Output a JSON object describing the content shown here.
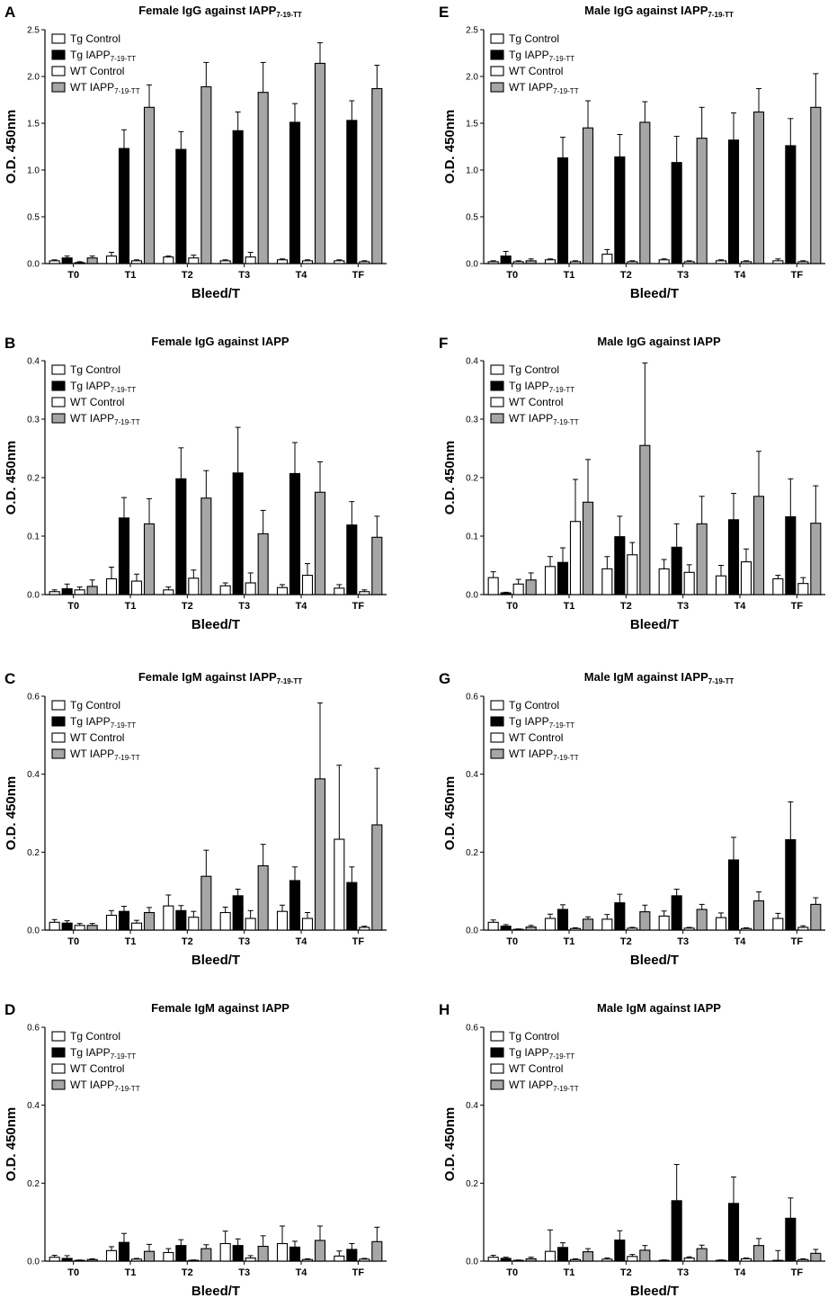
{
  "figure": {
    "series": [
      {
        "name": "Tg Control",
        "base": "Tg Control",
        "sub": "",
        "color": "#ffffff"
      },
      {
        "name": "Tg IAPP7-19-TT",
        "base": "Tg IAPP",
        "sub": "7-19-TT",
        "color": "#000000"
      },
      {
        "name": "WT Control",
        "base": "WT Control",
        "sub": "",
        "color": "#ffffff"
      },
      {
        "name": "WT IAPP7-19-TT",
        "base": "WT IAPP",
        "sub": "7-19-TT",
        "color": "#a6a6a6"
      }
    ],
    "categories": [
      "T0",
      "T1",
      "T2",
      "T3",
      "T4",
      "TF"
    ],
    "xlabel": "Bleed/T",
    "ylabel": "O.D. 450nm"
  },
  "chart_data": [
    {
      "type": "bar",
      "letter": "A",
      "title": "Female IgG against IAPP",
      "title_sub": "7-19-TT",
      "ylim": [
        0,
        2.5
      ],
      "yticks": [
        "0.0",
        "0.5",
        "1.0",
        "1.5",
        "2.0",
        "2.5"
      ],
      "values": [
        [
          0.03,
          0.06,
          0.01,
          0.06
        ],
        [
          0.08,
          1.23,
          0.03,
          1.67
        ],
        [
          0.07,
          1.22,
          0.06,
          1.89
        ],
        [
          0.03,
          1.42,
          0.07,
          1.83
        ],
        [
          0.04,
          1.51,
          0.03,
          2.14
        ],
        [
          0.03,
          1.53,
          0.02,
          1.87
        ]
      ],
      "errors": [
        [
          0.01,
          0.02,
          0.01,
          0.02
        ],
        [
          0.04,
          0.2,
          0.01,
          0.24
        ],
        [
          0.01,
          0.19,
          0.03,
          0.26
        ],
        [
          0.01,
          0.2,
          0.05,
          0.32
        ],
        [
          0.01,
          0.2,
          0.01,
          0.22
        ],
        [
          0.01,
          0.21,
          0.01,
          0.25
        ]
      ]
    },
    {
      "type": "bar",
      "letter": "E",
      "title": "Male IgG against IAPP",
      "title_sub": "7-19-TT",
      "ylim": [
        0,
        2.5
      ],
      "yticks": [
        "0.0",
        "0.5",
        "1.0",
        "1.5",
        "2.0",
        "2.5"
      ],
      "values": [
        [
          0.02,
          0.08,
          0.02,
          0.03
        ],
        [
          0.04,
          1.13,
          0.02,
          1.45
        ],
        [
          0.1,
          1.14,
          0.02,
          1.51
        ],
        [
          0.04,
          1.08,
          0.02,
          1.34
        ],
        [
          0.03,
          1.32,
          0.02,
          1.62
        ],
        [
          0.03,
          1.26,
          0.02,
          1.67
        ]
      ],
      "errors": [
        [
          0.01,
          0.05,
          0.01,
          0.02
        ],
        [
          0.01,
          0.22,
          0.01,
          0.29
        ],
        [
          0.05,
          0.24,
          0.01,
          0.22
        ],
        [
          0.01,
          0.28,
          0.01,
          0.33
        ],
        [
          0.01,
          0.29,
          0.01,
          0.25
        ],
        [
          0.02,
          0.29,
          0.01,
          0.36
        ]
      ]
    },
    {
      "type": "bar",
      "letter": "B",
      "title": "Female IgG against IAPP",
      "title_sub": "",
      "ylim": [
        0,
        0.4
      ],
      "yticks": [
        "0.0",
        "0.1",
        "0.2",
        "0.3",
        "0.4"
      ],
      "values": [
        [
          0.005,
          0.01,
          0.008,
          0.014
        ],
        [
          0.027,
          0.131,
          0.023,
          0.121
        ],
        [
          0.008,
          0.198,
          0.028,
          0.165
        ],
        [
          0.015,
          0.208,
          0.02,
          0.104
        ],
        [
          0.012,
          0.207,
          0.033,
          0.175
        ],
        [
          0.011,
          0.119,
          0.005,
          0.098
        ]
      ],
      "errors": [
        [
          0.003,
          0.008,
          0.005,
          0.011
        ],
        [
          0.02,
          0.035,
          0.012,
          0.043
        ],
        [
          0.005,
          0.053,
          0.014,
          0.047
        ],
        [
          0.005,
          0.078,
          0.017,
          0.04
        ],
        [
          0.005,
          0.053,
          0.02,
          0.052
        ],
        [
          0.006,
          0.04,
          0.003,
          0.036
        ]
      ]
    },
    {
      "type": "bar",
      "letter": "F",
      "title": "Male IgG against IAPP",
      "title_sub": "",
      "ylim": [
        0,
        0.4
      ],
      "yticks": [
        "0.0",
        "0.1",
        "0.2",
        "0.3",
        "0.4"
      ],
      "values": [
        [
          0.029,
          0.003,
          0.018,
          0.025
        ],
        [
          0.048,
          0.055,
          0.125,
          0.158
        ],
        [
          0.044,
          0.099,
          0.068,
          0.255
        ],
        [
          0.044,
          0.081,
          0.038,
          0.121
        ],
        [
          0.032,
          0.128,
          0.056,
          0.168
        ],
        [
          0.027,
          0.133,
          0.019,
          0.122
        ]
      ],
      "errors": [
        [
          0.01,
          0.001,
          0.008,
          0.012
        ],
        [
          0.017,
          0.025,
          0.072,
          0.073
        ],
        [
          0.021,
          0.035,
          0.021,
          0.141
        ],
        [
          0.016,
          0.04,
          0.013,
          0.047
        ],
        [
          0.018,
          0.045,
          0.022,
          0.077
        ],
        [
          0.006,
          0.065,
          0.01,
          0.064
        ]
      ]
    },
    {
      "type": "bar",
      "letter": "C",
      "title": "Female IgM against IAPP",
      "title_sub": "7-19-TT",
      "ylim": [
        0,
        0.6
      ],
      "yticks": [
        "0.0",
        "0.2",
        "0.4",
        "0.6"
      ],
      "values": [
        [
          0.02,
          0.018,
          0.012,
          0.012
        ],
        [
          0.038,
          0.048,
          0.018,
          0.045
        ],
        [
          0.062,
          0.05,
          0.033,
          0.138
        ],
        [
          0.045,
          0.088,
          0.03,
          0.165
        ],
        [
          0.048,
          0.127,
          0.03,
          0.388
        ],
        [
          0.233,
          0.122,
          0.007,
          0.27
        ]
      ],
      "errors": [
        [
          0.007,
          0.006,
          0.005,
          0.005
        ],
        [
          0.012,
          0.013,
          0.007,
          0.013
        ],
        [
          0.028,
          0.013,
          0.015,
          0.067
        ],
        [
          0.014,
          0.017,
          0.02,
          0.055
        ],
        [
          0.016,
          0.035,
          0.015,
          0.195
        ],
        [
          0.19,
          0.04,
          0.003,
          0.145
        ]
      ]
    },
    {
      "type": "bar",
      "letter": "G",
      "title": "Male IgM against IAPP",
      "title_sub": "7-19-TT",
      "ylim": [
        0,
        0.6
      ],
      "yticks": [
        "0.0",
        "0.2",
        "0.4",
        "0.6"
      ],
      "values": [
        [
          0.02,
          0.01,
          0.002,
          0.008
        ],
        [
          0.03,
          0.053,
          0.004,
          0.028
        ],
        [
          0.028,
          0.07,
          0.005,
          0.047
        ],
        [
          0.036,
          0.088,
          0.005,
          0.053
        ],
        [
          0.032,
          0.18,
          0.004,
          0.075
        ],
        [
          0.03,
          0.232,
          0.007,
          0.066
        ]
      ],
      "errors": [
        [
          0.006,
          0.004,
          0.001,
          0.004
        ],
        [
          0.011,
          0.012,
          0.002,
          0.006
        ],
        [
          0.012,
          0.022,
          0.002,
          0.017
        ],
        [
          0.013,
          0.017,
          0.002,
          0.013
        ],
        [
          0.012,
          0.058,
          0.002,
          0.023
        ],
        [
          0.013,
          0.097,
          0.004,
          0.017
        ]
      ]
    },
    {
      "type": "bar",
      "letter": "D",
      "title": "Female IgM against IAPP",
      "title_sub": "",
      "ylim": [
        0,
        0.6
      ],
      "yticks": [
        "0.0",
        "0.2",
        "0.4",
        "0.6"
      ],
      "values": [
        [
          0.01,
          0.007,
          0.002,
          0.004
        ],
        [
          0.027,
          0.048,
          0.005,
          0.025
        ],
        [
          0.022,
          0.04,
          0.002,
          0.032
        ],
        [
          0.045,
          0.04,
          0.008,
          0.038
        ],
        [
          0.045,
          0.036,
          0.004,
          0.053
        ],
        [
          0.013,
          0.03,
          0.005,
          0.05
        ]
      ],
      "errors": [
        [
          0.005,
          0.007,
          0.001,
          0.002
        ],
        [
          0.01,
          0.023,
          0.002,
          0.018
        ],
        [
          0.01,
          0.015,
          0.001,
          0.01
        ],
        [
          0.032,
          0.017,
          0.006,
          0.027
        ],
        [
          0.045,
          0.015,
          0.002,
          0.037
        ],
        [
          0.013,
          0.015,
          0.002,
          0.037
        ]
      ]
    },
    {
      "type": "bar",
      "letter": "H",
      "title": "Male IgM against IAPP",
      "title_sub": "",
      "ylim": [
        0,
        0.6
      ],
      "yticks": [
        "0.0",
        "0.2",
        "0.4",
        "0.6"
      ],
      "values": [
        [
          0.01,
          0.007,
          0.002,
          0.006
        ],
        [
          0.025,
          0.035,
          0.004,
          0.024
        ],
        [
          0.005,
          0.054,
          0.012,
          0.028
        ],
        [
          0.002,
          0.155,
          0.008,
          0.032
        ],
        [
          0.002,
          0.148,
          0.006,
          0.04
        ],
        [
          0.002,
          0.11,
          0.004,
          0.02
        ]
      ],
      "errors": [
        [
          0.005,
          0.003,
          0.001,
          0.004
        ],
        [
          0.055,
          0.012,
          0.002,
          0.008
        ],
        [
          0.003,
          0.024,
          0.005,
          0.012
        ],
        [
          0.001,
          0.093,
          0.003,
          0.009
        ],
        [
          0.001,
          0.068,
          0.002,
          0.018
        ],
        [
          0.025,
          0.052,
          0.002,
          0.01
        ]
      ]
    }
  ]
}
